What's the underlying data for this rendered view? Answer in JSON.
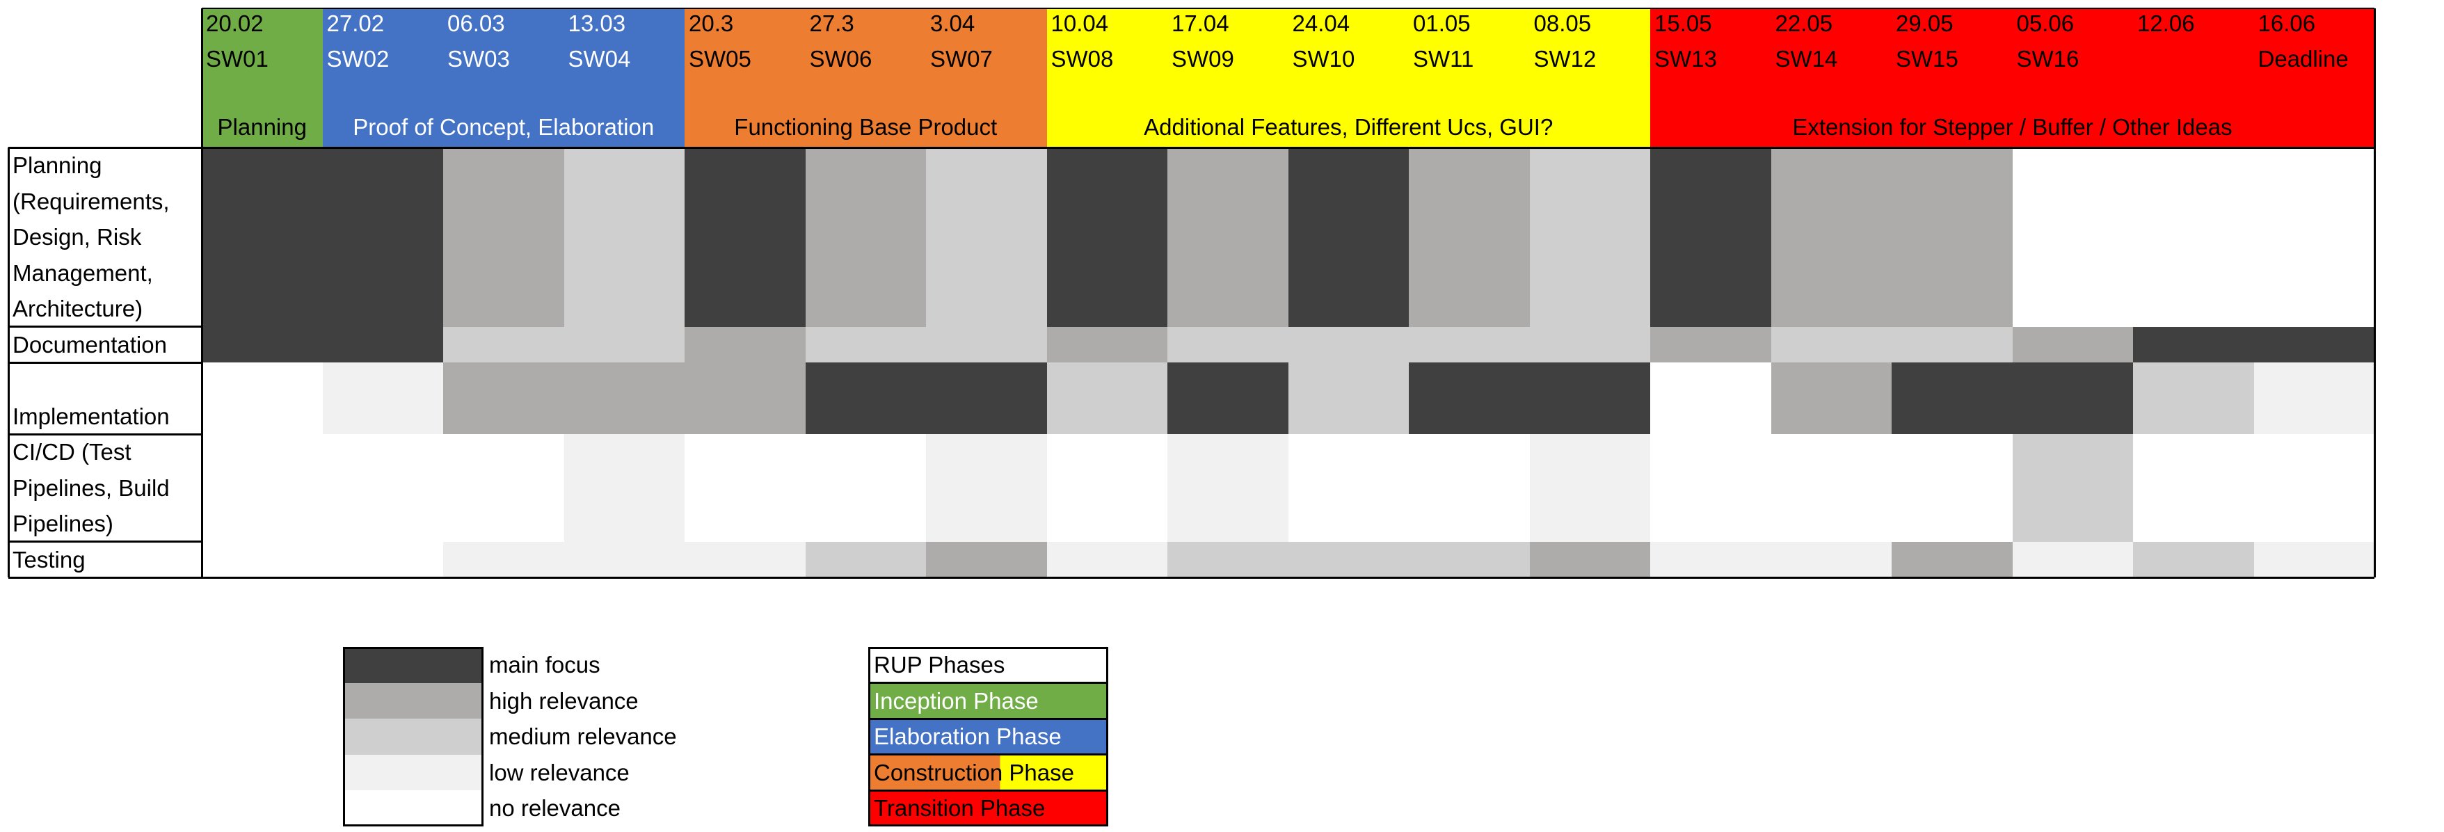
{
  "chart_data": {
    "type": "heatmap",
    "columns": [
      {
        "date": "20.02",
        "week": "SW01"
      },
      {
        "date": "27.02",
        "week": "SW02"
      },
      {
        "date": "06.03",
        "week": "SW03"
      },
      {
        "date": "13.03",
        "week": "SW04"
      },
      {
        "date": "20.3",
        "week": "SW05"
      },
      {
        "date": "27.3",
        "week": "SW06"
      },
      {
        "date": "3.04",
        "week": "SW07"
      },
      {
        "date": "10.04",
        "week": "SW08"
      },
      {
        "date": "17.04",
        "week": "SW09"
      },
      {
        "date": "24.04",
        "week": "SW10"
      },
      {
        "date": "01.05",
        "week": "SW11"
      },
      {
        "date": "08.05",
        "week": "SW12"
      },
      {
        "date": "15.05",
        "week": "SW13"
      },
      {
        "date": "22.05",
        "week": "SW14"
      },
      {
        "date": "29.05",
        "week": "SW15"
      },
      {
        "date": "05.06",
        "week": "SW16"
      },
      {
        "date": "12.06",
        "week": ""
      },
      {
        "date": "16.06",
        "week": "Deadline"
      }
    ],
    "phases": [
      {
        "label": "Planning",
        "start": 0,
        "span": 1,
        "color": "#70ad47",
        "text_color": "#000000"
      },
      {
        "label": "Proof of Concept, Elaboration",
        "start": 1,
        "span": 3,
        "color": "#4472c4",
        "text_color": "#ffffff"
      },
      {
        "label": "Functioning Base Product",
        "start": 4,
        "span": 3,
        "color": "#ed7d31",
        "text_color": "#000000"
      },
      {
        "label": "Additional Features, Different Ucs, GUI?",
        "start": 7,
        "span": 5,
        "color": "#ffff00",
        "text_color": "#000000"
      },
      {
        "label": "Extension for Stepper / Buffer / Other Ideas",
        "start": 12,
        "span": 6,
        "color": "#ff0000",
        "text_color": "#000000"
      }
    ],
    "rows": [
      {
        "label": "Planning (Requirements, Design, Risk Management, Architecture)",
        "lines": [
          "Planning",
          "(Requirements,",
          "Design, Risk",
          "Management,",
          "Architecture)"
        ],
        "values": [
          4,
          4,
          3,
          2,
          4,
          3,
          2,
          4,
          3,
          4,
          3,
          2,
          4,
          3,
          3,
          0,
          0,
          0
        ]
      },
      {
        "label": "Documentation",
        "lines": [
          "Documentation"
        ],
        "values": [
          4,
          4,
          2,
          2,
          3,
          2,
          2,
          3,
          2,
          2,
          2,
          2,
          3,
          2,
          2,
          3,
          4,
          4
        ]
      },
      {
        "label": "Implementation",
        "lines": [
          "",
          "Implementation"
        ],
        "values": [
          0,
          1,
          3,
          3,
          3,
          4,
          4,
          2,
          4,
          2,
          4,
          4,
          0,
          3,
          4,
          4,
          2,
          1
        ]
      },
      {
        "label": "CI/CD (Test Pipelines, Build Pipelines)",
        "lines": [
          "CI/CD (Test",
          "Pipelines, Build",
          "Pipelines)"
        ],
        "values": [
          0,
          0,
          0,
          1,
          0,
          0,
          1,
          0,
          1,
          0,
          0,
          1,
          0,
          0,
          0,
          2,
          0,
          0
        ]
      },
      {
        "label": "Testing",
        "lines": [
          "Testing"
        ],
        "values": [
          0,
          0,
          1,
          1,
          1,
          2,
          3,
          1,
          2,
          2,
          2,
          3,
          1,
          1,
          3,
          1,
          2,
          1
        ]
      }
    ],
    "relevance_colors": [
      "#ffffff",
      "#f1f1f1",
      "#d0cfcf",
      "#aeabab",
      "#404040"
    ]
  },
  "legend": {
    "items": [
      {
        "label": "main focus",
        "color": "#404040"
      },
      {
        "label": "high relevance",
        "color": "#aeabab"
      },
      {
        "label": "medium relevance",
        "color": "#d0cfcf"
      },
      {
        "label": "low relevance",
        "color": "#f1f1f1"
      },
      {
        "label": "no relevance",
        "color": "#ffffff"
      }
    ]
  },
  "rup": {
    "title": "RUP Phases",
    "phases": [
      {
        "label": "Inception Phase",
        "color": "#70ad47",
        "text_color": "#ffffff"
      },
      {
        "label": "Elaboration Phase",
        "color": "#4472c4",
        "text_color": "#ffffff"
      },
      {
        "label": "Construction Phase",
        "color": "#ed7d31",
        "color2": "#ffff00",
        "text_color": "#000000"
      },
      {
        "label": "Transition Phase",
        "color": "#ff0000",
        "text_color": "#000000"
      }
    ]
  }
}
